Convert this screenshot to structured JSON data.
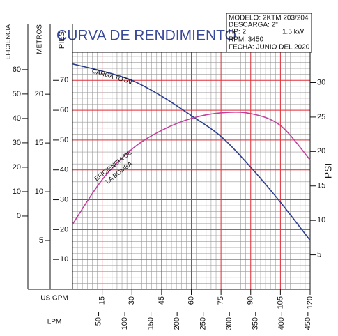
{
  "chart_data": {
    "type": "line",
    "title": "CURVA DE RENDIMIENTO",
    "info": [
      "MODELO: 2KTM 203/204",
      "DESCARGA: 2\"",
      "HP: 2",
      "1.5 kW",
      "RPM: 3450",
      "FECHA: JUNIO DEL 2020"
    ],
    "xlabel": "US GPM",
    "x2label": "LPM",
    "ylabel": "PIES",
    "y2label": "PSI",
    "y3label": "METROS",
    "y4label": "EFICIENCIA",
    "x": [
      0,
      15,
      30,
      45,
      60,
      75,
      90,
      105,
      120
    ],
    "xlim": [
      0,
      120
    ],
    "xticks": [
      15,
      30,
      45,
      60,
      75,
      90,
      105,
      120
    ],
    "x2lim": [
      0,
      454.2
    ],
    "x2ticks": [
      50,
      100,
      150,
      200,
      250,
      300,
      350,
      400,
      450
    ],
    "ylim": [
      0,
      79.4
    ],
    "yticks": [
      10,
      20,
      30,
      40,
      50,
      60,
      70
    ],
    "y2lim": [
      0,
      34.4
    ],
    "y2ticks": [
      5,
      10,
      15,
      20,
      25,
      30
    ],
    "y3lim": [
      0,
      24.3
    ],
    "y3ticks": [
      5,
      10,
      15,
      20
    ],
    "y4lim": [
      -30,
      67.1
    ],
    "y4ticks": [
      0,
      10,
      20,
      30,
      40,
      50,
      60
    ],
    "grid": true,
    "series": [
      {
        "name": "CARGA TOTAL",
        "color": "#2c3f8f",
        "axis": "y",
        "values": [
          75.5,
          73.1,
          70,
          64.7,
          58.2,
          51.2,
          40.9,
          29.2,
          16.4
        ]
      },
      {
        "name": "EFICIENCIA DE LA BOMBA",
        "color": "#c0409c",
        "axis": "y4",
        "values": [
          -3.4,
          14.9,
          27.4,
          35.1,
          40,
          42.3,
          42,
          37.1,
          23
        ]
      }
    ],
    "annotations": [
      "CARGA TOTAL",
      "EFICIENCIA DE",
      "LA BOMBA"
    ]
  }
}
